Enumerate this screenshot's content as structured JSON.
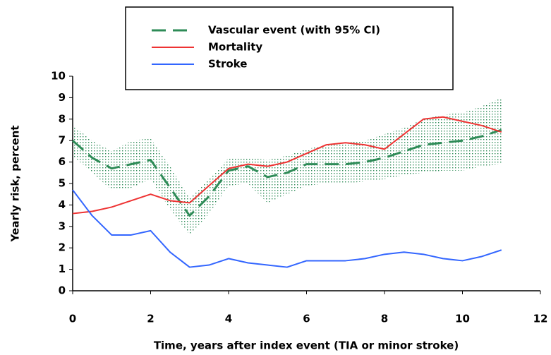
{
  "chart_data": {
    "type": "line",
    "xlabel": "Time, years after index event (TIA or minor stroke)",
    "ylabel": "Yearly risk, percent",
    "x": [
      0,
      0.5,
      1,
      1.5,
      2,
      2.5,
      3,
      3.5,
      4,
      4.5,
      5,
      5.5,
      6,
      6.5,
      7,
      7.5,
      8,
      8.5,
      9,
      9.5,
      10,
      10.5,
      11
    ],
    "series": [
      {
        "name": "Vascular event (with 95% CI)",
        "color": "#2e8b57",
        "linestyle": "dashed",
        "values": [
          7.0,
          6.2,
          5.7,
          5.9,
          6.1,
          4.8,
          3.5,
          4.4,
          5.6,
          5.8,
          5.3,
          5.5,
          5.9,
          5.9,
          5.9,
          6.0,
          6.2,
          6.5,
          6.8,
          6.9,
          7.0,
          7.2,
          7.5
        ],
        "ci_upper": [
          7.7,
          7.0,
          6.5,
          7.0,
          7.1,
          5.8,
          4.3,
          5.2,
          6.2,
          6.2,
          6.1,
          6.3,
          6.6,
          6.8,
          6.9,
          7.0,
          7.3,
          7.6,
          8.0,
          8.2,
          8.3,
          8.6,
          9.0
        ],
        "ci_lower": [
          6.3,
          5.5,
          4.7,
          4.8,
          5.2,
          3.8,
          2.6,
          3.6,
          4.9,
          5.0,
          4.1,
          4.5,
          4.9,
          5.0,
          5.0,
          5.1,
          5.2,
          5.4,
          5.5,
          5.6,
          5.6,
          5.8,
          5.9
        ]
      },
      {
        "name": "Mortality",
        "color": "#ee3333",
        "linestyle": "solid",
        "values": [
          3.6,
          3.7,
          3.9,
          4.2,
          4.5,
          4.2,
          4.1,
          4.9,
          5.7,
          5.9,
          5.8,
          6.0,
          6.4,
          6.8,
          6.9,
          6.8,
          6.6,
          7.3,
          8.0,
          8.1,
          7.9,
          7.7,
          7.4
        ]
      },
      {
        "name": "Stroke",
        "color": "#3366ff",
        "linestyle": "solid",
        "values": [
          4.7,
          3.5,
          2.6,
          2.6,
          2.8,
          1.8,
          1.1,
          1.2,
          1.5,
          1.3,
          1.2,
          1.1,
          1.4,
          1.4,
          1.4,
          1.5,
          1.7,
          1.8,
          1.7,
          1.5,
          1.4,
          1.6,
          1.9
        ]
      }
    ],
    "xlim": [
      0,
      12
    ],
    "xticks": [
      0,
      2,
      4,
      6,
      8,
      10,
      12
    ],
    "ylim": [
      0,
      10
    ],
    "yticks": [
      0,
      1,
      2,
      3,
      4,
      5,
      6,
      7,
      8,
      9,
      10
    ],
    "legend": "top"
  }
}
